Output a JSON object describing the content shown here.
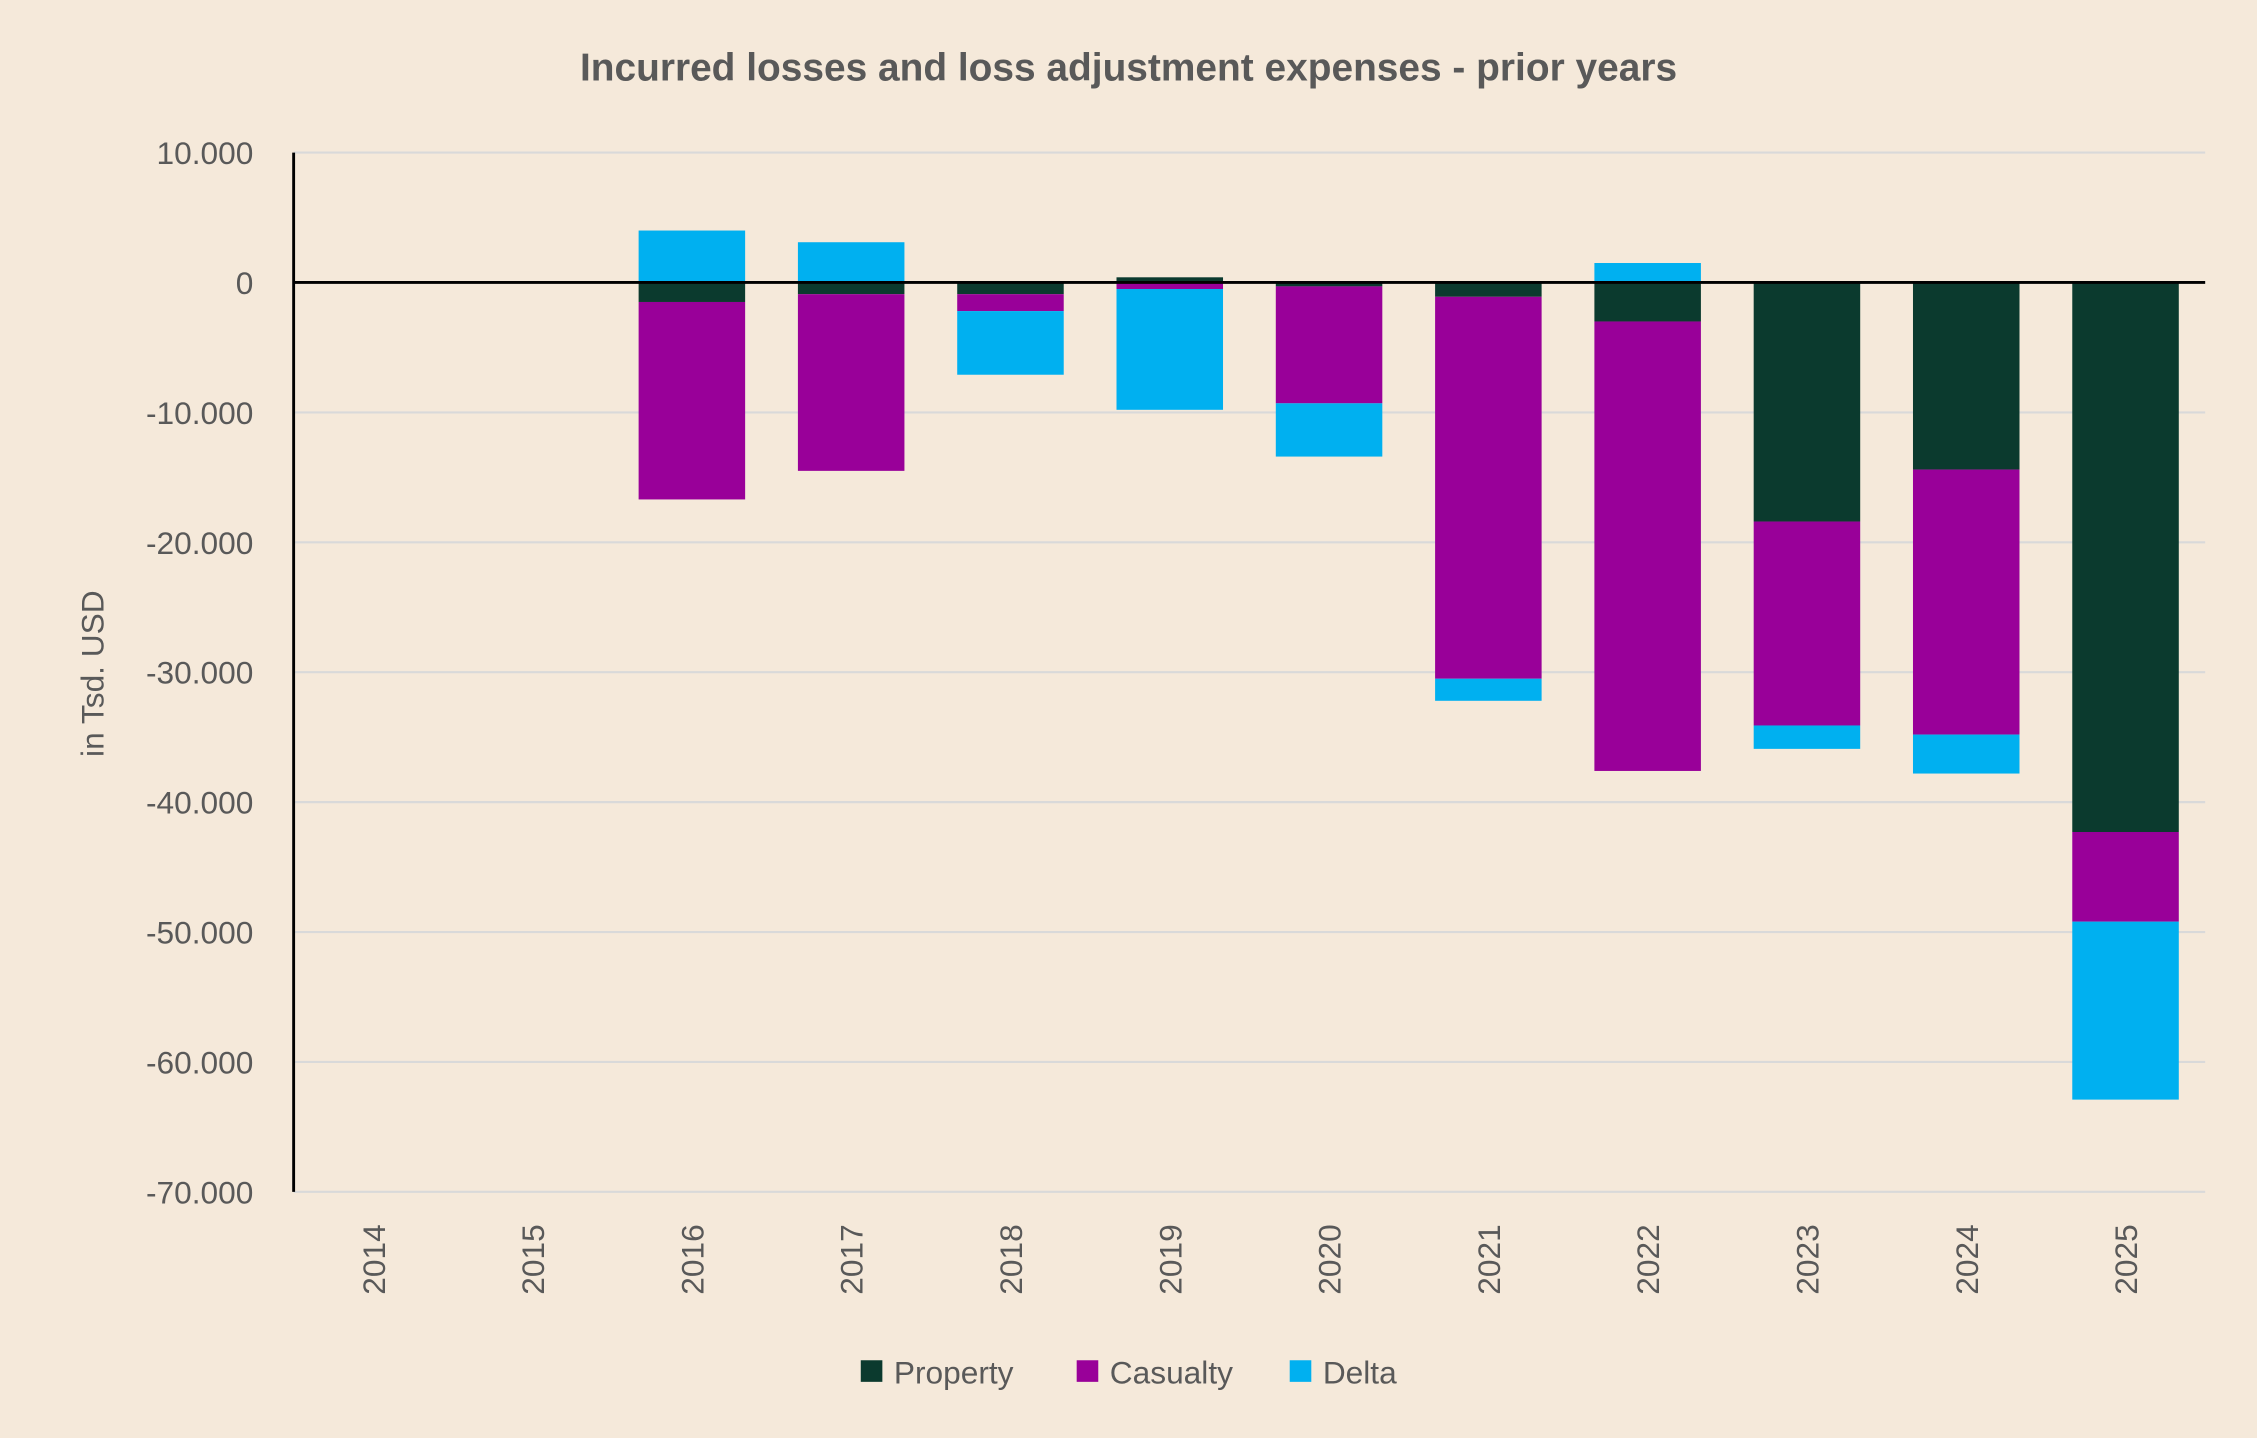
{
  "chart_data": {
    "type": "bar",
    "stacked": true,
    "title": "Incurred losses and loss adjustment expenses - prior years",
    "xlabel": "",
    "ylabel": "in Tsd. USD",
    "ylim": [
      -70000,
      10000
    ],
    "yticks": [
      10000,
      0,
      -10000,
      -20000,
      -30000,
      -40000,
      -50000,
      -60000,
      -70000
    ],
    "ytick_labels": [
      "10.000",
      "0",
      "-10.000",
      "-20.000",
      "-30.000",
      "-40.000",
      "-50.000",
      "-60.000",
      "-70.000"
    ],
    "grid": true,
    "legend_position": "bottom",
    "categories": [
      "2014",
      "2015",
      "2016",
      "2017",
      "2018",
      "2019",
      "2020",
      "2021",
      "2022",
      "2023",
      "2024",
      "2025"
    ],
    "series": [
      {
        "name": "Property",
        "color": "#0b3a2e",
        "values": [
          0,
          0,
          -1500,
          -900,
          -900,
          400,
          -300,
          -1100,
          -3000,
          -18400,
          -14400,
          -42300
        ]
      },
      {
        "name": "Casualty",
        "color": "#990099",
        "values": [
          0,
          0,
          -15200,
          -13600,
          -1300,
          -500,
          -9000,
          -29400,
          -34600,
          -15700,
          -20400,
          -6900
        ]
      },
      {
        "name": "Delta",
        "color": "#00b0f0",
        "values": [
          0,
          0,
          4000,
          3100,
          -4900,
          -9300,
          -4100,
          -1700,
          1500,
          -1800,
          -3000,
          -13700
        ]
      }
    ]
  }
}
